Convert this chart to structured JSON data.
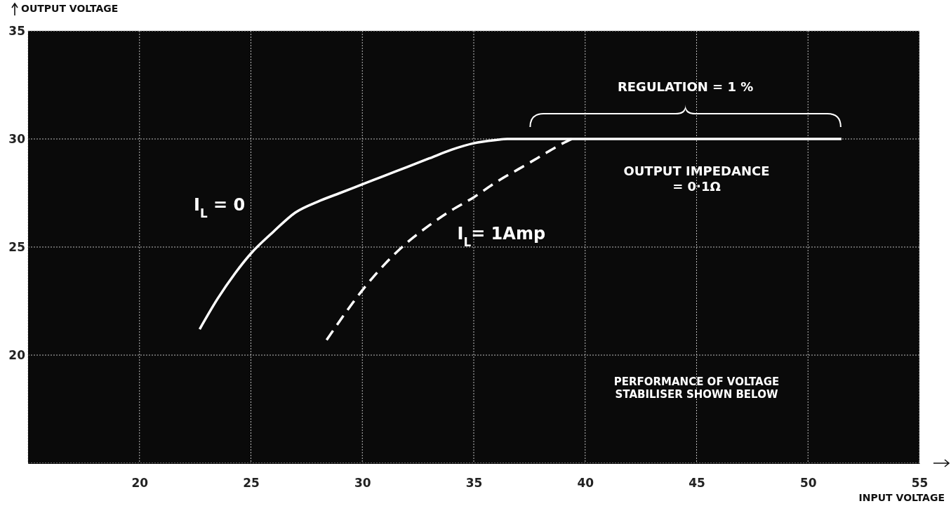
{
  "chart_data": {
    "type": "line",
    "xlabel": "INPUT VOLTAGE",
    "ylabel": "OUTPUT VOLTAGE",
    "xlim": [
      15,
      55
    ],
    "ylim": [
      15,
      35
    ],
    "xticks": [
      {
        "value": 15,
        "label": null
      },
      20,
      25,
      30,
      35,
      40,
      45,
      50,
      55
    ],
    "yticks": [
      {
        "value": 15,
        "label": null
      },
      20,
      25,
      30,
      35
    ],
    "grid": true,
    "series": [
      {
        "name": "I$_{L}$ = 0",
        "color": "#ffffff",
        "line_style": "solid",
        "x": [
          22.7,
          23.5,
          24.3,
          25,
          26,
          27,
          28,
          29,
          30,
          31,
          32,
          33,
          34,
          35,
          36,
          36.5,
          51.5
        ],
        "values": [
          21.2,
          22.6,
          23.8,
          24.7,
          25.7,
          26.6,
          27.1,
          27.5,
          27.9,
          28.3,
          28.7,
          29.1,
          29.5,
          29.8,
          29.95,
          30,
          30
        ]
      },
      {
        "name": "I$_{L}$= 1Amp",
        "color": "#ffffff",
        "line_style": "dashed",
        "x": [
          28.4,
          29,
          30,
          31,
          32,
          33,
          34,
          35,
          36,
          37,
          38,
          39,
          39.4
        ],
        "values": [
          20.7,
          21.6,
          23,
          24.2,
          25.2,
          26,
          26.7,
          27.3,
          28,
          28.6,
          29.2,
          29.8,
          30
        ]
      }
    ],
    "annotations": [
      "REGULATION = 1 %",
      "OUTPUT IMPEDANCE\n= 0·1Ω",
      "PERFORMANCE OF VOLTAGE\nSTABILISER SHOWN BELOW"
    ]
  }
}
